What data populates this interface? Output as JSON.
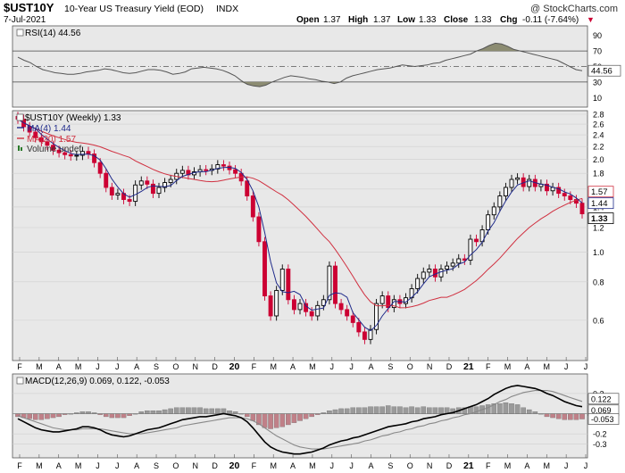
{
  "header": {
    "symbol": "$UST10Y",
    "description": "10-Year US Treasury Yield (EOD)",
    "exchange": "INDX",
    "date": "7-Jul-2021",
    "copyright": "@ StockCharts.com",
    "open_label": "Open",
    "open": "1.37",
    "high_label": "High",
    "high": "1.37",
    "low_label": "Low",
    "low": "1.33",
    "close_label": "Close",
    "close": "1.33",
    "chg_label": "Chg",
    "chg": "-0.11 (-7.64%)",
    "chg_triangle": "▼"
  },
  "colors": {
    "panel_bg": "#e8e8e8",
    "up": "#000000",
    "down": "#cc0033",
    "ma4": "#1f2a8a",
    "ma20": "#d03040",
    "rsi_line": "#555555",
    "rsi_fill": "#8c8c72",
    "macd_line": "#000000",
    "signal_line": "#888888",
    "hist_pos": "#9a9a9a",
    "hist_neg": "#c08088"
  },
  "chart_data": [
    {
      "type": "line",
      "name": "rsi",
      "legend": "RSI(14) 44.56",
      "last_label": "44.56",
      "ylim": [
        0,
        100
      ],
      "ticks": [
        "90",
        "70",
        "50",
        "30",
        "10"
      ],
      "tick_values": [
        90,
        70,
        50,
        30,
        10
      ],
      "overbought": 70,
      "oversold": 30,
      "midline": 50,
      "values": [
        62,
        58,
        55,
        50,
        46,
        44,
        42,
        41,
        40,
        40,
        41,
        43,
        44,
        45,
        47,
        46,
        44,
        42,
        41,
        42,
        44,
        46,
        46,
        45,
        43,
        40,
        41,
        43,
        47,
        48,
        49,
        48,
        47,
        45,
        42,
        38,
        32,
        27,
        25,
        24,
        26,
        30,
        33,
        36,
        38,
        37,
        36,
        34,
        33,
        31,
        30,
        28,
        30,
        35,
        38,
        40,
        42,
        44,
        46,
        47,
        48,
        50,
        52,
        51,
        50,
        51,
        52,
        54,
        55,
        58,
        60,
        62,
        64,
        66,
        70,
        73,
        77,
        80,
        79,
        76,
        72,
        70,
        68,
        66,
        64,
        62,
        60,
        58,
        54,
        50,
        46,
        44.56
      ]
    },
    {
      "type": "candlestick",
      "name": "price",
      "scale": "log",
      "legend_title": "$UST10Y (Weekly) 1.33",
      "legend_ma4": "MA(4) 1.44",
      "legend_ma20": "MA(20) 1.57",
      "legend_volume": "Volume undef",
      "ylim": [
        0.45,
        2.8
      ],
      "ticks": [
        "2.8",
        "2.6",
        "2.4",
        "2.2",
        "2.0",
        "1.8",
        "1.6",
        "1.4",
        "1.2",
        "1.0",
        "0.8",
        "0.6"
      ],
      "tick_values": [
        2.8,
        2.6,
        2.4,
        2.2,
        2.0,
        1.8,
        1.6,
        1.4,
        1.2,
        1.0,
        0.8,
        0.6
      ],
      "last_labels": {
        "ma20": "1.57",
        "ma4": "1.44",
        "close": "1.33"
      },
      "closes": [
        2.7,
        2.55,
        2.45,
        2.35,
        2.28,
        2.22,
        2.14,
        2.1,
        2.07,
        2.05,
        2.06,
        2.12,
        2.08,
        1.95,
        1.8,
        1.62,
        1.53,
        1.55,
        1.48,
        1.46,
        1.65,
        1.7,
        1.66,
        1.55,
        1.62,
        1.68,
        1.72,
        1.8,
        1.84,
        1.78,
        1.82,
        1.85,
        1.84,
        1.86,
        1.92,
        1.9,
        1.85,
        1.8,
        1.7,
        1.52,
        1.3,
        1.08,
        0.72,
        0.62,
        0.75,
        0.88,
        0.7,
        0.65,
        0.68,
        0.64,
        0.62,
        0.67,
        0.7,
        0.9,
        0.68,
        0.65,
        0.62,
        0.59,
        0.55,
        0.52,
        0.56,
        0.68,
        0.72,
        0.66,
        0.7,
        0.68,
        0.71,
        0.76,
        0.82,
        0.86,
        0.88,
        0.83,
        0.88,
        0.9,
        0.92,
        0.95,
        0.94,
        1.1,
        1.08,
        1.18,
        1.32,
        1.4,
        1.52,
        1.62,
        1.72,
        1.74,
        1.63,
        1.72,
        1.63,
        1.66,
        1.58,
        1.62,
        1.55,
        1.52,
        1.48,
        1.44,
        1.33
      ]
    },
    {
      "type": "line",
      "name": "macd",
      "legend": "MACD(12,26,9) 0.069, 0.122, -0.053",
      "ylim": [
        -0.42,
        0.35
      ],
      "ticks": [
        "0.2",
        "0.0",
        "-0.2",
        "-0.3"
      ],
      "tick_values": [
        0.2,
        0.0,
        -0.2,
        -0.3
      ],
      "last_labels": [
        "0.122",
        "0.069",
        "-0.053"
      ],
      "last_values": [
        0.122,
        0.069,
        -0.053
      ],
      "macd": [
        -0.05,
        -0.08,
        -0.11,
        -0.14,
        -0.16,
        -0.17,
        -0.18,
        -0.18,
        -0.17,
        -0.16,
        -0.15,
        -0.13,
        -0.13,
        -0.14,
        -0.16,
        -0.19,
        -0.21,
        -0.22,
        -0.23,
        -0.22,
        -0.2,
        -0.18,
        -0.16,
        -0.15,
        -0.14,
        -0.12,
        -0.1,
        -0.08,
        -0.06,
        -0.05,
        -0.04,
        -0.03,
        -0.03,
        -0.02,
        -0.01,
        0.0,
        -0.01,
        -0.02,
        -0.04,
        -0.08,
        -0.14,
        -0.21,
        -0.28,
        -0.33,
        -0.36,
        -0.38,
        -0.39,
        -0.4,
        -0.4,
        -0.39,
        -0.38,
        -0.36,
        -0.34,
        -0.31,
        -0.29,
        -0.27,
        -0.26,
        -0.24,
        -0.23,
        -0.21,
        -0.19,
        -0.17,
        -0.15,
        -0.13,
        -0.12,
        -0.11,
        -0.1,
        -0.08,
        -0.07,
        -0.05,
        -0.04,
        -0.03,
        -0.01,
        0.0,
        0.01,
        0.03,
        0.05,
        0.07,
        0.09,
        0.12,
        0.15,
        0.19,
        0.22,
        0.25,
        0.27,
        0.28,
        0.27,
        0.26,
        0.25,
        0.23,
        0.2,
        0.18,
        0.15,
        0.12,
        0.1,
        0.08,
        0.069
      ],
      "signal": [
        -0.02,
        -0.04,
        -0.06,
        -0.08,
        -0.1,
        -0.12,
        -0.14,
        -0.15,
        -0.16,
        -0.16,
        -0.16,
        -0.15,
        -0.15,
        -0.15,
        -0.15,
        -0.16,
        -0.17,
        -0.18,
        -0.19,
        -0.2,
        -0.2,
        -0.2,
        -0.19,
        -0.18,
        -0.17,
        -0.16,
        -0.15,
        -0.14,
        -0.12,
        -0.11,
        -0.1,
        -0.09,
        -0.08,
        -0.07,
        -0.06,
        -0.05,
        -0.04,
        -0.04,
        -0.04,
        -0.05,
        -0.07,
        -0.1,
        -0.14,
        -0.18,
        -0.22,
        -0.25,
        -0.28,
        -0.31,
        -0.33,
        -0.34,
        -0.35,
        -0.35,
        -0.35,
        -0.34,
        -0.33,
        -0.32,
        -0.31,
        -0.3,
        -0.29,
        -0.27,
        -0.26,
        -0.24,
        -0.22,
        -0.21,
        -0.19,
        -0.18,
        -0.16,
        -0.15,
        -0.13,
        -0.12,
        -0.1,
        -0.09,
        -0.07,
        -0.06,
        -0.04,
        -0.03,
        -0.01,
        0.0,
        0.02,
        0.04,
        0.06,
        0.09,
        0.12,
        0.14,
        0.17,
        0.19,
        0.21,
        0.22,
        0.23,
        0.23,
        0.23,
        0.22,
        0.2,
        0.18,
        0.16,
        0.14,
        0.122
      ]
    }
  ],
  "x_axis": {
    "labels": [
      "F",
      "M",
      "A",
      "M",
      "J",
      "J",
      "A",
      "S",
      "O",
      "N",
      "D",
      "20",
      "F",
      "M",
      "A",
      "M",
      "J",
      "J",
      "A",
      "S",
      "O",
      "N",
      "D",
      "21",
      "F",
      "M",
      "A",
      "M",
      "J",
      "J"
    ],
    "bold": [
      "20",
      "21"
    ]
  }
}
